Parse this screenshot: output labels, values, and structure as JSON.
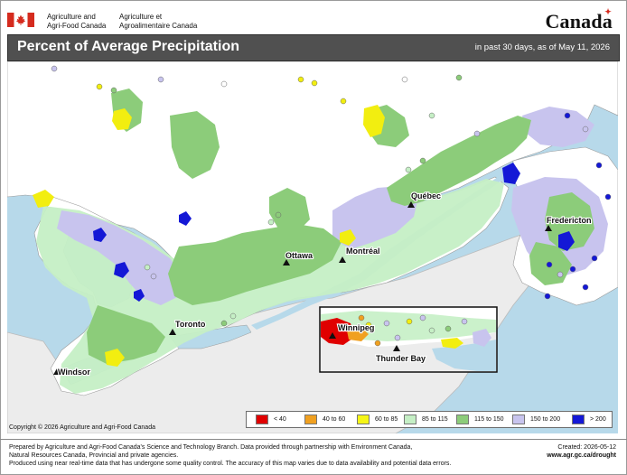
{
  "header": {
    "agency_en_line1": "Agriculture and",
    "agency_en_line2": "Agri-Food Canada",
    "agency_fr_line1": "Agriculture et",
    "agency_fr_line2": "Agroalimentaire Canada",
    "wordmark": "Canada"
  },
  "title": {
    "main": "Percent of Average Precipitation",
    "subtitle": "in past 30 days, as of May 11, 2026"
  },
  "map": {
    "cities": {
      "quebec": "Québec",
      "fredericton": "Fredericton",
      "ottawa": "Ottawa",
      "montreal": "Montréal",
      "toronto": "Toronto",
      "windsor": "Windsor"
    },
    "inset": {
      "winnipeg": "Winnipeg",
      "thunder_bay": "Thunder Bay"
    },
    "colors": {
      "water": "#b7d9ea",
      "land": "#ffffff",
      "us_land": "#ececec",
      "green": "#8ccc7a",
      "light_green": "#c5efc5",
      "lavender": "#c8c4ee",
      "blue": "#1418d6",
      "yellow": "#f2ee10",
      "orange": "#f0a020",
      "red": "#e00000"
    }
  },
  "legend": {
    "items": [
      {
        "label": "< 40",
        "color": "#e00000"
      },
      {
        "label": "40 to 60",
        "color": "#f0a020"
      },
      {
        "label": "60 to 85",
        "color": "#f5f516"
      },
      {
        "label": "85 to 115",
        "color": "#c5efc5"
      },
      {
        "label": "115 to 150",
        "color": "#8ccc7a"
      },
      {
        "label": "150 to 200",
        "color": "#c8c4ee"
      },
      {
        "label": "> 200",
        "color": "#1418d6"
      }
    ]
  },
  "copyright": "Copyright © 2026 Agriculture and Agri-Food Canada",
  "footer": {
    "line1": "Prepared by Agriculture and Agri-Food Canada's Science and Technology Branch. Data provided through partnership with Environment Canada,",
    "line2": "Natural Resources Canada, Provincial and private agencies.",
    "line3": "Produced using near real-time data that has undergone some quality control. The accuracy of this map varies due to data availability and potential data errors.",
    "created": "Created: 2026-05-12",
    "url": "www.agr.gc.ca/drought"
  }
}
